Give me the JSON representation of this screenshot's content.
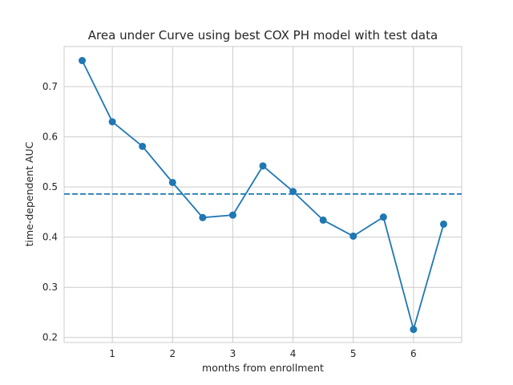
{
  "chart_data": {
    "type": "line",
    "title": "Area under Curve using best COX PH model with test data",
    "xlabel": "months from enrollment",
    "ylabel": "time-dependent AUC",
    "x": [
      0.5,
      1.0,
      1.5,
      2.0,
      2.5,
      3.0,
      3.5,
      4.0,
      4.5,
      5.0,
      5.5,
      6.0,
      6.5
    ],
    "series": [
      {
        "values": [
          0.752,
          0.63,
          0.581,
          0.509,
          0.439,
          0.444,
          0.542,
          0.491,
          0.434,
          0.402,
          0.44,
          0.216,
          0.426
        ],
        "color": "#1f77b4",
        "marker": "circle"
      }
    ],
    "mean_line": {
      "value": 0.486,
      "style": "dashed",
      "color": "#1f77b4"
    },
    "xlim": [
      0.2,
      6.8
    ],
    "ylim": [
      0.19,
      0.78
    ],
    "xticks": [
      1,
      2,
      3,
      4,
      5,
      6
    ],
    "yticks": [
      0.2,
      0.3,
      0.4,
      0.5,
      0.6,
      0.7
    ],
    "grid": true,
    "legend": false
  }
}
